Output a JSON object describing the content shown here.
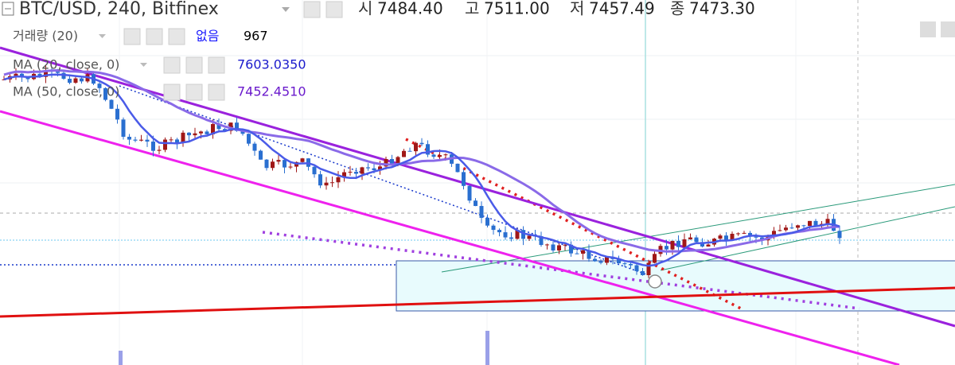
{
  "header": {
    "symbol": "BTC/USD, 240, Bitfinex",
    "ohlc": [
      {
        "label": "시",
        "value": "7484.40"
      },
      {
        "label": "고",
        "value": "7511.00"
      },
      {
        "label": "저",
        "value": "7457.49"
      },
      {
        "label": "종",
        "value": "7473.30"
      }
    ]
  },
  "indicators": [
    {
      "name": "거래량 (20)",
      "label": "없음",
      "value": "967"
    },
    {
      "name": "MA (20, close, 0)",
      "value": "7603.0350"
    },
    {
      "name": "MA (50, close, 0)",
      "value": "7452.4510"
    }
  ]
}
